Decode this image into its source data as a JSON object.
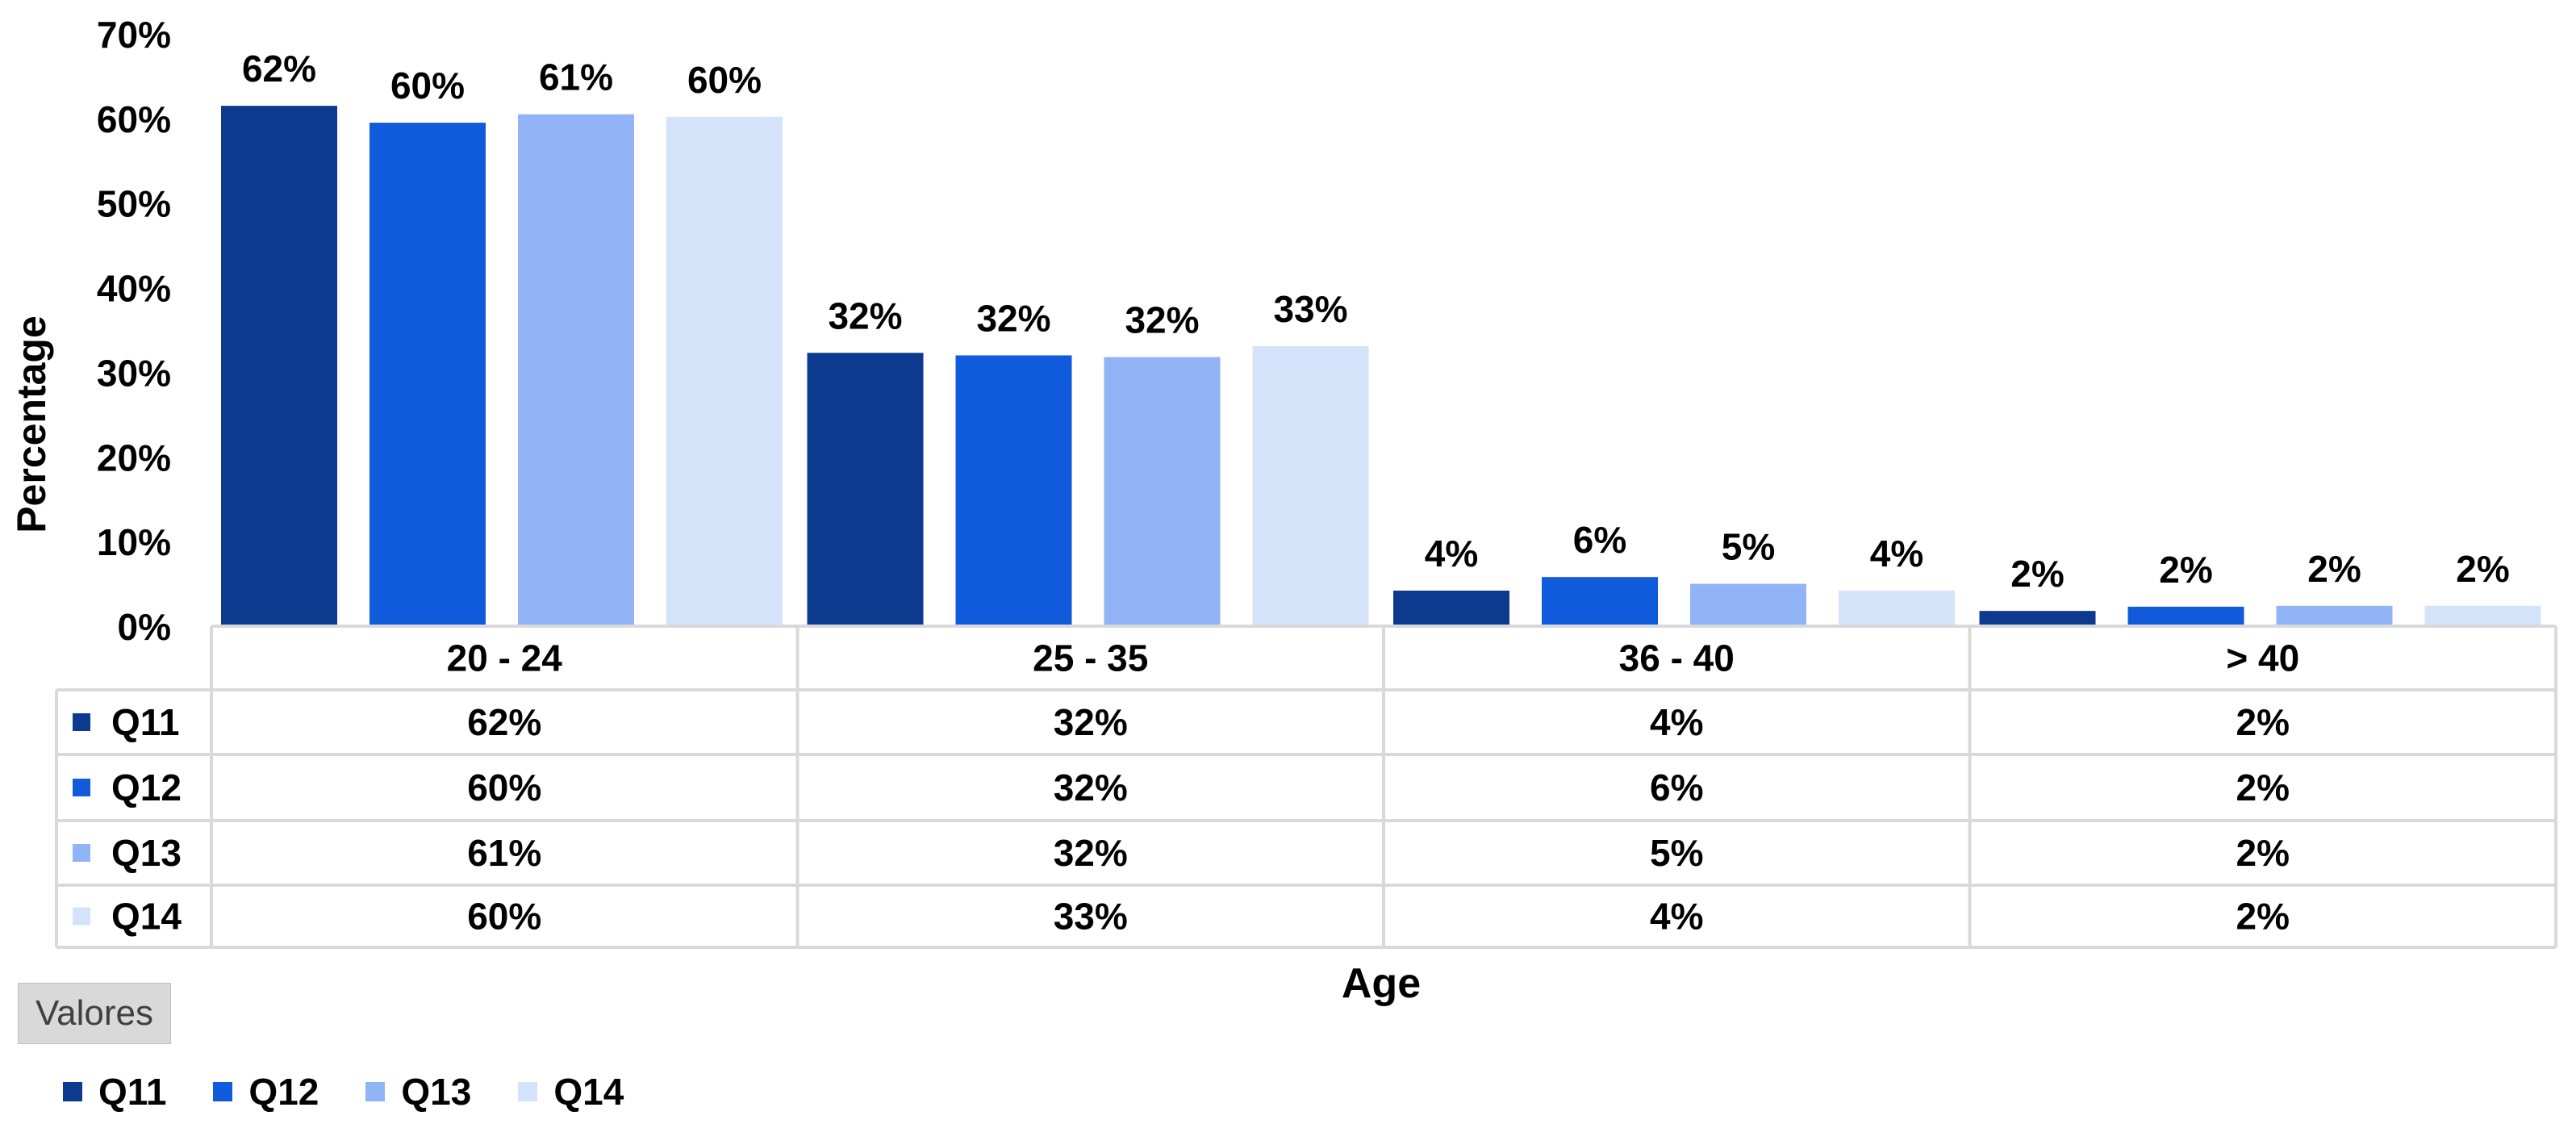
{
  "colors": {
    "Q11": "#0b3a8f",
    "Q12": "#0f5bdb",
    "Q13": "#90b4f5",
    "Q14": "#d5e3fa",
    "grid": "#d9d9d9",
    "axis": "#bfbfbf"
  },
  "chart_data": {
    "type": "bar",
    "xlabel": "Age",
    "ylabel": "Percentage",
    "ylim": [
      0,
      70
    ],
    "yticks": [
      0,
      10,
      20,
      30,
      40,
      50,
      60,
      70
    ],
    "ytick_labels": [
      "0%",
      "10%",
      "20%",
      "30%",
      "40%",
      "50%",
      "60%",
      "70%"
    ],
    "categories": [
      "20 - 24",
      "25 - 35",
      "36 - 40",
      "> 40"
    ],
    "series": [
      {
        "name": "Q11",
        "values": [
          62,
          32,
          4,
          2
        ],
        "plot_values": [
          61.5,
          32.3,
          4.2,
          1.8
        ],
        "labels": [
          "62%",
          "32%",
          "4%",
          "2%"
        ]
      },
      {
        "name": "Q12",
        "values": [
          60,
          32,
          6,
          2
        ],
        "plot_values": [
          59.5,
          32.0,
          5.8,
          2.3
        ],
        "labels": [
          "60%",
          "32%",
          "6%",
          "2%"
        ]
      },
      {
        "name": "Q13",
        "values": [
          61,
          32,
          5,
          2
        ],
        "plot_values": [
          60.5,
          31.8,
          5.0,
          2.4
        ],
        "labels": [
          "61%",
          "32%",
          "5%",
          "2%"
        ]
      },
      {
        "name": "Q14",
        "values": [
          60,
          33,
          4,
          2
        ],
        "plot_values": [
          60.2,
          33.1,
          4.2,
          2.4
        ],
        "labels": [
          "60%",
          "33%",
          "4%",
          "2%"
        ]
      }
    ],
    "data_table": true,
    "grid": false,
    "legend": "bottom"
  },
  "field_button": "Valores"
}
